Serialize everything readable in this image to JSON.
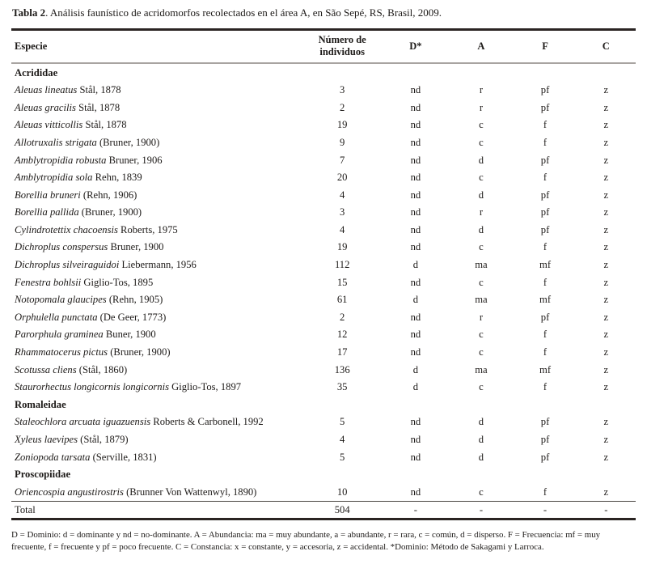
{
  "title": {
    "label_bold": "Tabla 2",
    "label_rest": ". Análisis faunístico de acridomorfos recolectados en el área A, en São Sepé, RS, Brasil, 2009."
  },
  "table": {
    "columns": {
      "especie": "Especie",
      "numero_line1": "Número de",
      "numero_line2": "individuos",
      "d": "D*",
      "a": "A",
      "f": "F",
      "c": "C"
    },
    "rows": [
      {
        "type": "section",
        "label": "Acrididae"
      },
      {
        "type": "species",
        "italic": "Aleuas lineatus",
        "rest": "Stål, 1878",
        "n": "3",
        "d": "nd",
        "a": "r",
        "f": "pf",
        "c": "z"
      },
      {
        "type": "species",
        "italic": "Aleuas gracilis",
        "rest": "Stål, 1878",
        "n": "2",
        "d": "nd",
        "a": "r",
        "f": "pf",
        "c": "z"
      },
      {
        "type": "species",
        "italic": "Aleuas vitticollis",
        "rest": "Stål, 1878",
        "n": "19",
        "d": "nd",
        "a": "c",
        "f": "f",
        "c": "z"
      },
      {
        "type": "species",
        "italic": "Allotruxalis strigata",
        "rest": "(Bruner, 1900)",
        "n": "9",
        "d": "nd",
        "a": "c",
        "f": "f",
        "c": "z"
      },
      {
        "type": "species",
        "italic": "Amblytropidia robusta",
        "rest": "Bruner, 1906",
        "n": "7",
        "d": "nd",
        "a": "d",
        "f": "pf",
        "c": "z"
      },
      {
        "type": "species",
        "italic": "Amblytropidia sola",
        "rest": "Rehn, 1839",
        "n": "20",
        "d": "nd",
        "a": "c",
        "f": "f",
        "c": "z"
      },
      {
        "type": "species",
        "italic": "Borellia bruneri",
        "rest": "(Rehn, 1906)",
        "n": "4",
        "d": "nd",
        "a": "d",
        "f": "pf",
        "c": "z"
      },
      {
        "type": "species",
        "italic": "Borellia pallida",
        "rest": "(Bruner, 1900)",
        "n": "3",
        "d": "nd",
        "a": "r",
        "f": "pf",
        "c": "z"
      },
      {
        "type": "species",
        "italic": "Cylindrotettix chacoensis",
        "rest": "Roberts, 1975",
        "n": "4",
        "d": "nd",
        "a": "d",
        "f": "pf",
        "c": "z"
      },
      {
        "type": "species",
        "italic": "Dichroplus conspersus",
        "rest": "Bruner, 1900",
        "n": "19",
        "d": "nd",
        "a": "c",
        "f": "f",
        "c": "z"
      },
      {
        "type": "species",
        "italic": "Dichroplus silveiraguidoi",
        "rest": "Liebermann, 1956",
        "n": "112",
        "d": "d",
        "a": "ma",
        "f": "mf",
        "c": "z"
      },
      {
        "type": "species",
        "italic": "Fenestra bohlsii",
        "rest": "Giglio-Tos, 1895",
        "n": "15",
        "d": "nd",
        "a": "c",
        "f": "f",
        "c": "z"
      },
      {
        "type": "species",
        "italic": "Notopomala glaucipes",
        "rest": "(Rehn, 1905)",
        "n": "61",
        "d": "d",
        "a": "ma",
        "f": "mf",
        "c": "z"
      },
      {
        "type": "species",
        "italic": "Orphulella punctata",
        "rest": "(De Geer, 1773)",
        "n": "2",
        "d": "nd",
        "a": "r",
        "f": "pf",
        "c": "z"
      },
      {
        "type": "species",
        "italic": "Parorphula graminea",
        "rest": "Buner, 1900",
        "n": "12",
        "d": "nd",
        "a": "c",
        "f": "f",
        "c": "z"
      },
      {
        "type": "species",
        "italic": "Rhammatocerus pictus",
        "rest": "(Bruner, 1900)",
        "n": "17",
        "d": "nd",
        "a": "c",
        "f": "f",
        "c": "z"
      },
      {
        "type": "species",
        "italic": "Scotussa cliens",
        "rest": "(Stål, 1860)",
        "n": "136",
        "d": "d",
        "a": "ma",
        "f": "mf",
        "c": "z"
      },
      {
        "type": "species",
        "italic": "Staurorhectus longicornis longicornis",
        "rest": "Giglio-Tos, 1897",
        "n": "35",
        "d": "d",
        "a": "c",
        "f": "f",
        "c": "z"
      },
      {
        "type": "section",
        "label": "Romaleidae"
      },
      {
        "type": "species",
        "italic": "Staleochlora arcuata iguazuensis",
        "rest": "Roberts & Carbonell, 1992",
        "n": "5",
        "d": "nd",
        "a": "d",
        "f": "pf",
        "c": "z"
      },
      {
        "type": "species",
        "italic": "Xyleus laevipes",
        "rest": "(Stål, 1879)",
        "n": "4",
        "d": "nd",
        "a": "d",
        "f": "pf",
        "c": "z"
      },
      {
        "type": "species",
        "italic": "Zoniopoda tarsata",
        "rest": "(Serville, 1831)",
        "n": "5",
        "d": "nd",
        "a": "d",
        "f": "pf",
        "c": "z"
      },
      {
        "type": "section",
        "label": "Proscopiidae"
      },
      {
        "type": "species",
        "italic": "Oriencospia angustirostris",
        "rest": "(Brunner Von Wattenwyl, 1890)",
        "n": "10",
        "d": "nd",
        "a": "c",
        "f": "f",
        "c": "z"
      },
      {
        "type": "total",
        "label": "Total",
        "n": "504",
        "d": "-",
        "a": "-",
        "f": "-",
        "c": "-"
      }
    ]
  },
  "footnote": "D = Dominio: d = dominante y nd = no-dominante. A = Abundancia: ma = muy abundante, a = abundante, r = rara, c = común, d = disperso. F = Frecuencia: mf = muy frecuente, f = frecuente y pf = poco frecuente. C = Constancia: x = constante, y = accesoria, z = accidental. *Dominio: Método de Sakagami y Larroca."
}
